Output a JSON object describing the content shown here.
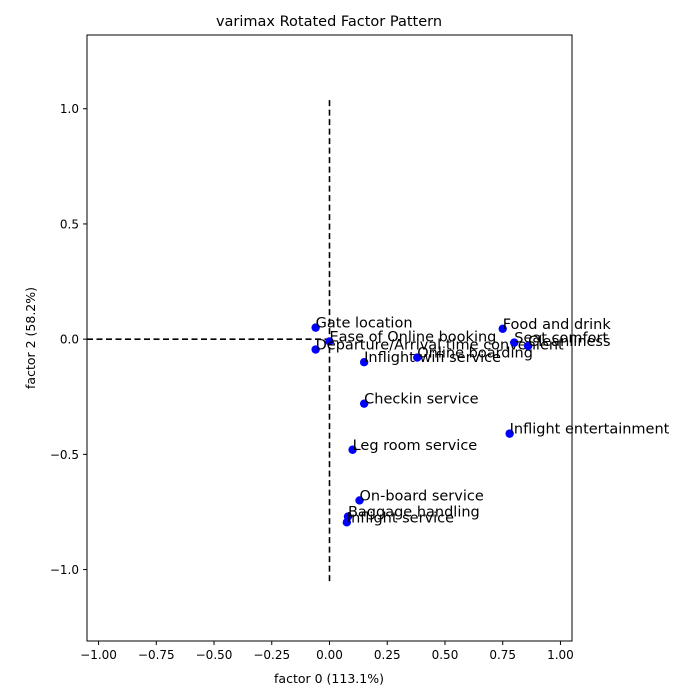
{
  "chart_data": {
    "type": "scatter",
    "title": "varimax Rotated Factor Pattern",
    "xlabel": "factor 0 (113.1%)",
    "ylabel": "factor 2 (58.2%)",
    "xlim": [
      -1.05,
      1.05
    ],
    "ylim": [
      -1.31,
      1.32
    ],
    "xticks": [
      "−1.00",
      "−0.75",
      "−0.50",
      "−0.25",
      "0.00",
      "0.25",
      "0.50",
      "0.75",
      "1.00"
    ],
    "xtick_values": [
      -1.0,
      -0.75,
      -0.5,
      -0.25,
      0.0,
      0.25,
      0.5,
      0.75,
      1.0
    ],
    "yticks": [
      "−1.0",
      "−0.5",
      "0.0",
      "0.5",
      "1.0"
    ],
    "ytick_values": [
      -1.0,
      -0.5,
      0.0,
      0.5,
      1.0
    ],
    "grid": false,
    "marker_color": "#0000ff",
    "reference_lines": {
      "horizontal": [
        -1.05,
        0.0
      ],
      "vertical": [
        0.0,
        -1.05,
        1.05
      ]
    },
    "points": [
      {
        "label": "Gate location",
        "x": -0.06,
        "y": 0.05
      },
      {
        "label": "Ease of Online booking",
        "x": 0.0,
        "y": -0.01
      },
      {
        "label": "Departure/Arrival time convenient",
        "x": -0.06,
        "y": -0.045
      },
      {
        "label": "Inflight wifi service",
        "x": 0.15,
        "y": -0.1
      },
      {
        "label": "Online boarding",
        "x": 0.38,
        "y": -0.08
      },
      {
        "label": "Food and drink",
        "x": 0.75,
        "y": 0.045
      },
      {
        "label": "Seat comfort",
        "x": 0.8,
        "y": -0.015
      },
      {
        "label": "Cleanliness",
        "x": 0.86,
        "y": -0.03
      },
      {
        "label": "Checkin service",
        "x": 0.15,
        "y": -0.28
      },
      {
        "label": "Inflight entertainment",
        "x": 0.78,
        "y": -0.41
      },
      {
        "label": "Leg room service",
        "x": 0.1,
        "y": -0.48
      },
      {
        "label": "On-board service",
        "x": 0.13,
        "y": -0.7
      },
      {
        "label": "Baggage handling",
        "x": 0.08,
        "y": -0.77
      },
      {
        "label": "Inflight service",
        "x": 0.075,
        "y": -0.795
      }
    ]
  }
}
